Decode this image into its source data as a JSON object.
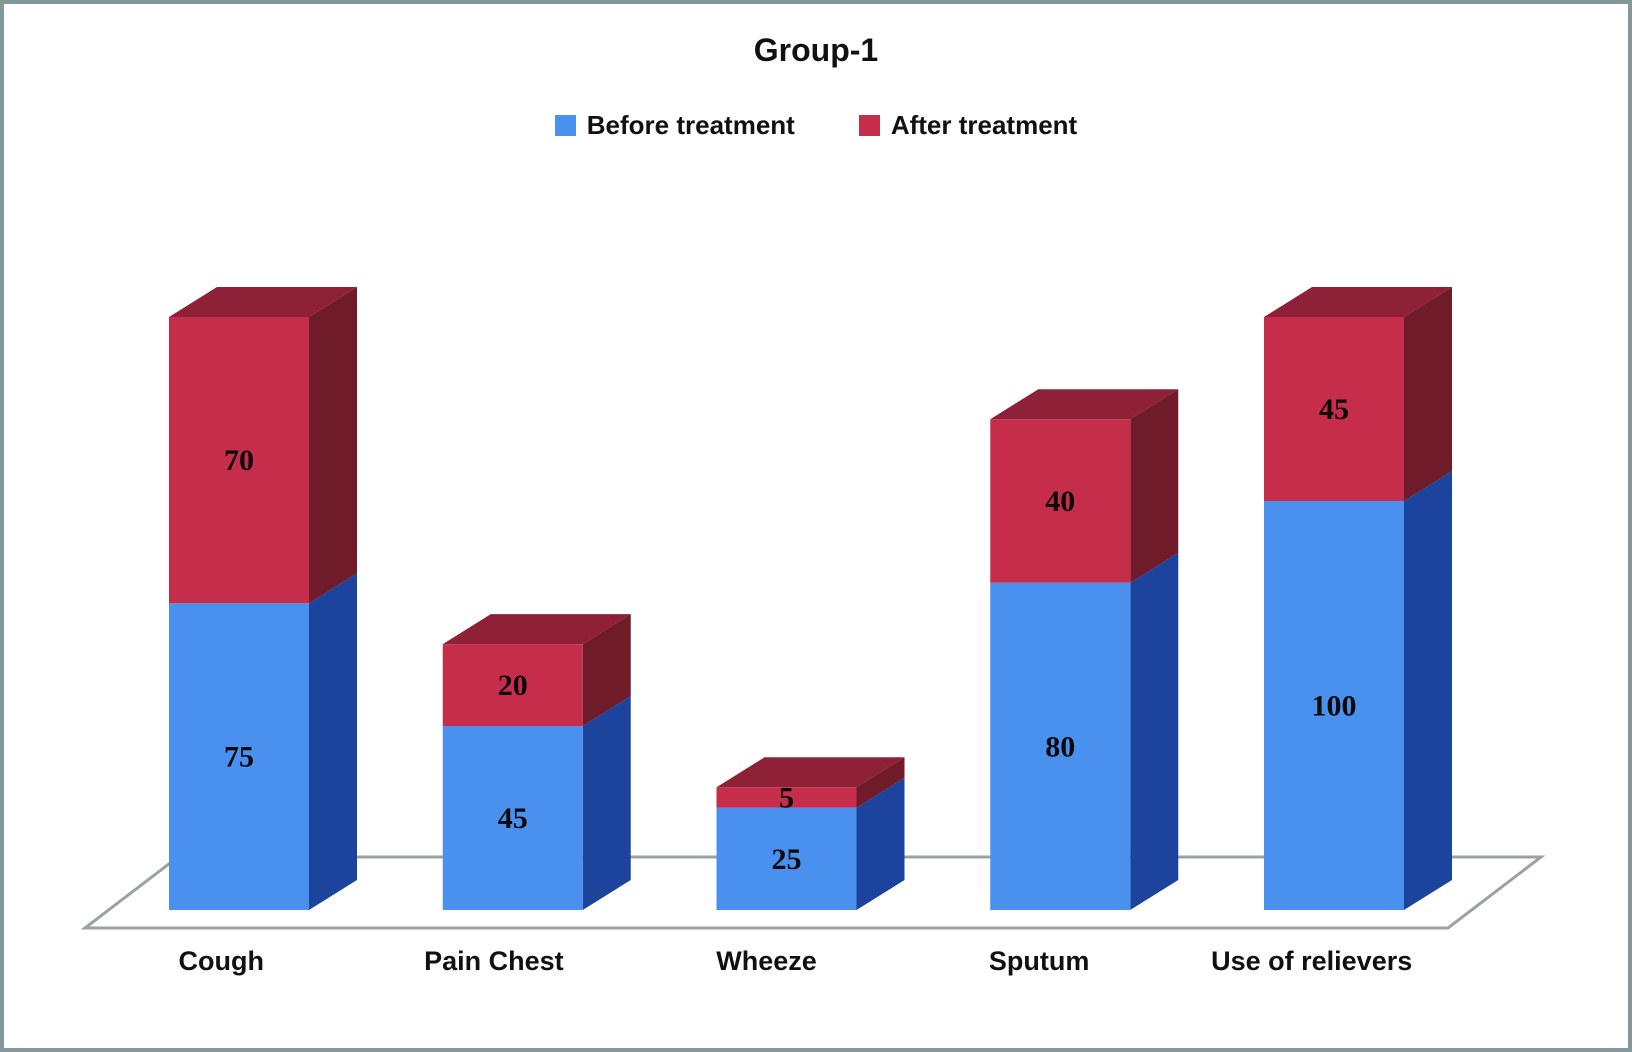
{
  "title": "Group-1",
  "legend": [
    {
      "name": "Before treatment",
      "color": "#4a90ee"
    },
    {
      "name": "After treatment",
      "color": "#c52d4b"
    }
  ],
  "chart_data": {
    "type": "bar",
    "subtype": "stacked-3d",
    "title": "Group-1",
    "categories": [
      "Cough",
      "Pain Chest",
      "Wheeze",
      "Sputum",
      "Use of relievers"
    ],
    "series": [
      {
        "name": "Before treatment",
        "values": [
          75,
          45,
          25,
          80,
          100
        ],
        "color": "#4a90ee",
        "side_color": "#1d449c"
      },
      {
        "name": "After treatment",
        "values": [
          70,
          20,
          5,
          40,
          45
        ],
        "color": "#c52d4b",
        "side_color": "#6f1b29",
        "top_color": "#8e2138"
      }
    ],
    "xlabel": "",
    "ylabel": "",
    "ylim": [
      0,
      145
    ],
    "grid": false,
    "legend_position": "top",
    "value_labels": "inside",
    "floor_color": "#9aa39e",
    "frame_color": "#84989b"
  }
}
